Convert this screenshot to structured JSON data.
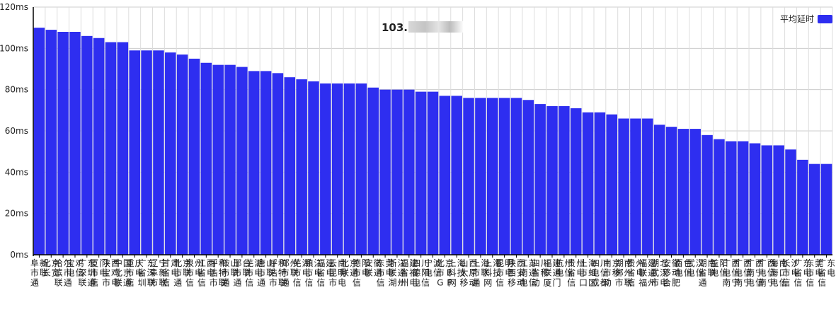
{
  "chart_data": {
    "type": "bar",
    "title": "103.1",
    "xlabel": "",
    "ylabel": "",
    "y_unit": "ms",
    "ylim": [
      0,
      120
    ],
    "yticks": [
      0,
      20,
      40,
      60,
      80,
      100,
      120
    ],
    "ytick_labels": [
      "0ms",
      "20ms",
      "40ms",
      "60ms",
      "80ms",
      "100ms",
      "120ms"
    ],
    "grid": true,
    "legend_position": "top-right",
    "bar_color": "#2e2ef0",
    "series": [
      {
        "name": "平均延时",
        "values": [
          110,
          109,
          108,
          108,
          106,
          105,
          103,
          103,
          99,
          99,
          99,
          98,
          97,
          95,
          93,
          92,
          92,
          91,
          89,
          89,
          88,
          86,
          85,
          84,
          83,
          83,
          83,
          83,
          81,
          80,
          80,
          80,
          79,
          79,
          77,
          77,
          76,
          76,
          76,
          76,
          76,
          75,
          73,
          72,
          72,
          71,
          69,
          69,
          68,
          66,
          66,
          66,
          63,
          62,
          61,
          61,
          58,
          56,
          55,
          55,
          54,
          53,
          53,
          51,
          46,
          44,
          44
        ]
      }
    ],
    "categories": [
      "阜新市联通",
      "北京长宽",
      "哈尔滨市联通",
      "宝鸡电信",
      "广东深圳联通",
      "厦门市电信",
      "陕西宝鸡市电",
      "中国北京联通",
      "重庆市电信",
      "广东省深圳联",
      "辽宁阜新市联",
      "甘肃省电信",
      "北京市联通",
      "泉州市电信",
      "江西省电信",
      "呼和浩特市联",
      "鞍山市联通",
      "邢台市联通",
      "芜湖市电信",
      "唐山市联通",
      "呼和浩特市联",
      "郑州市联通",
      "芜湖市电信",
      "镇江市电信",
      "福建省电信",
      "云南昆明市电",
      "北京联通",
      "德阳市电信",
      "安徽联通",
      "东莞市电信",
      "浙江联通湖州",
      "福建省福州电",
      "四川德阳电信",
      "宁波电信",
      "北京市BGP",
      "上海科技网",
      "山西太原移动",
      "上海市联通",
      "上海科技网",
      "昆明市电信",
      "陕西西安移动",
      "江苏南通电信",
      "四川省移动",
      "福建联通厦门",
      "杭州电信",
      "贵州省电信",
      "上海市虹口区",
      "四川电信成都",
      "南京市移动",
      "湖南郴州市联",
      "贵州省电信",
      "福建联通福州",
      "湖北武汉市电",
      "安徽移动合肥",
      "百色电信",
      "武汉电信",
      "湖南省联通",
      "益阳电信",
      "广西电信南宁",
      "广西电信南宁",
      "广西南宁电信",
      "广西电信南宁",
      "海南海口电信",
      "长沙市电信",
      "广东省电信",
      "东莞市电信",
      "广东省电信"
    ]
  }
}
